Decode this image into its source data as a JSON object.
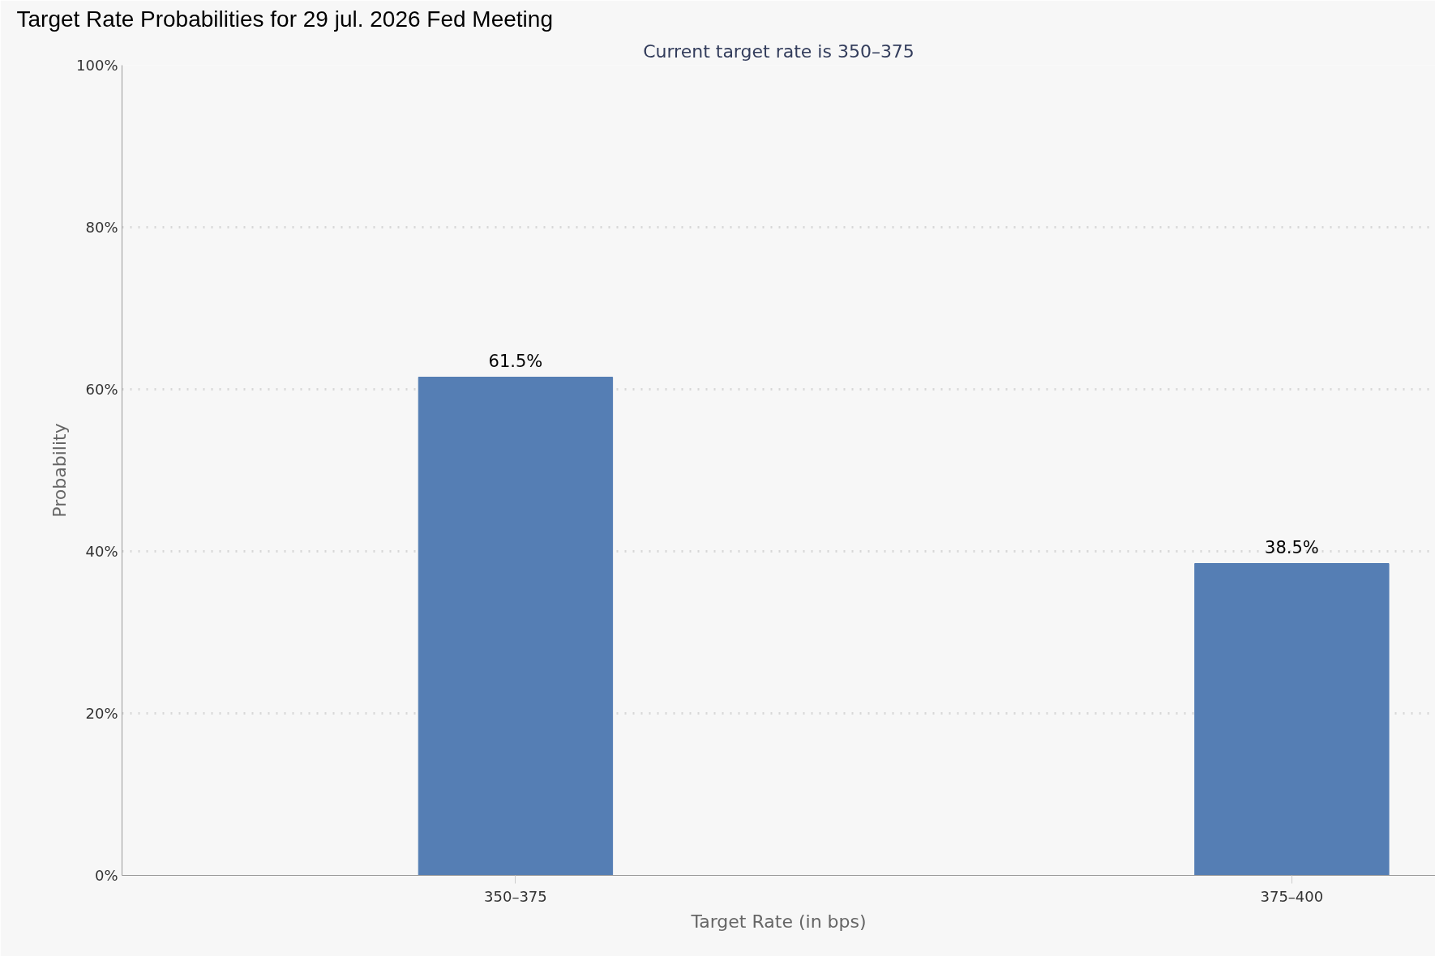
{
  "chart_data": {
    "type": "bar",
    "title": "Target Rate Probabilities for 29 jul. 2026 Fed Meeting",
    "subtitle": "Current target rate is 350–375",
    "xlabel": "Target Rate (in bps)",
    "ylabel": "Probability",
    "categories": [
      "350–375",
      "375–400"
    ],
    "values": [
      61.5,
      38.5
    ],
    "value_labels": [
      "61.5%",
      "38.5%"
    ],
    "color": "#557eb4",
    "ylim": [
      0,
      100
    ],
    "yticks": [
      {
        "value": 0,
        "label": "0%"
      },
      {
        "value": 20,
        "label": "20%"
      },
      {
        "value": 40,
        "label": "40%"
      },
      {
        "value": 60,
        "label": "60%"
      },
      {
        "value": 80,
        "label": "80%"
      },
      {
        "value": 100,
        "label": "100%"
      }
    ],
    "grid": "y"
  }
}
